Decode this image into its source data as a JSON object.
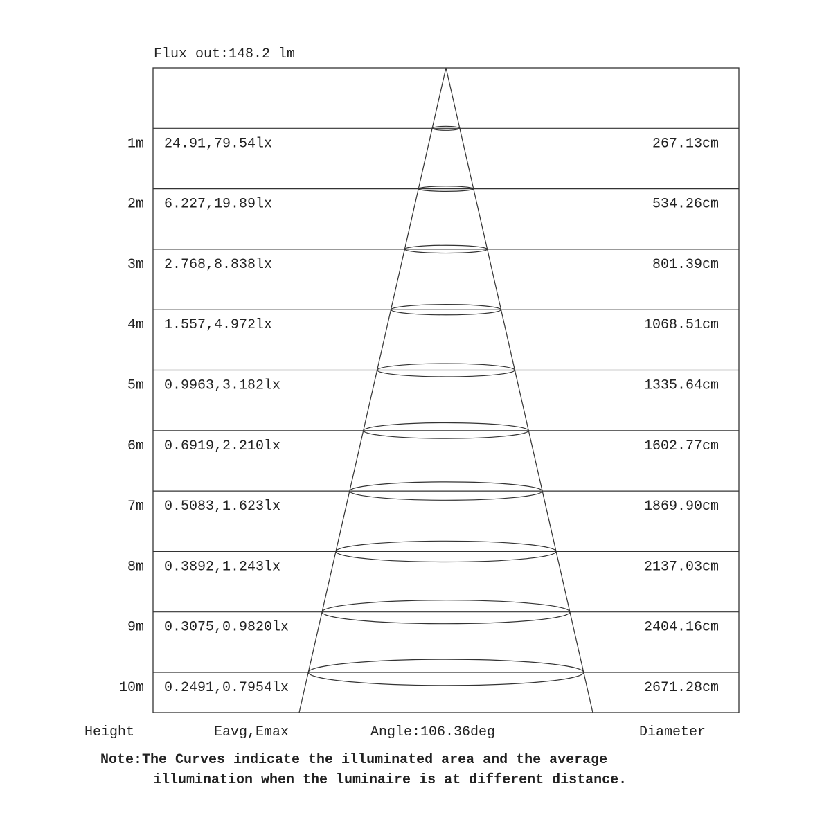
{
  "flux_out": "Flux out:148.2 lm",
  "rows": [
    {
      "height": "1m",
      "illuminance": "24.91,79.54lx",
      "diameter": "267.13cm"
    },
    {
      "height": "2m",
      "illuminance": "6.227,19.89lx",
      "diameter": "534.26cm"
    },
    {
      "height": "3m",
      "illuminance": "2.768,8.838lx",
      "diameter": "801.39cm"
    },
    {
      "height": "4m",
      "illuminance": "1.557,4.972lx",
      "diameter": "1068.51cm"
    },
    {
      "height": "5m",
      "illuminance": "0.9963,3.182lx",
      "diameter": "1335.64cm"
    },
    {
      "height": "6m",
      "illuminance": "0.6919,2.210lx",
      "diameter": "1602.77cm"
    },
    {
      "height": "7m",
      "illuminance": "0.5083,1.623lx",
      "diameter": "1869.90cm"
    },
    {
      "height": "8m",
      "illuminance": "0.3892,1.243lx",
      "diameter": "2137.03cm"
    },
    {
      "height": "9m",
      "illuminance": "0.3075,0.9820lx",
      "diameter": "2404.16cm"
    },
    {
      "height": "10m",
      "illuminance": "0.2491,0.7954lx",
      "diameter": "2671.28cm"
    }
  ],
  "footer": {
    "height_label": "Height",
    "illuminance_label": "Eavg,Emax",
    "angle_label": "Angle:106.36deg",
    "diameter_label": "Diameter"
  },
  "note": {
    "line1": "Note:The Curves indicate the illuminated area and the average",
    "line2": "illumination when the luminaire is at different distance."
  },
  "colors": {
    "line": "#333333",
    "text": "#222222"
  }
}
